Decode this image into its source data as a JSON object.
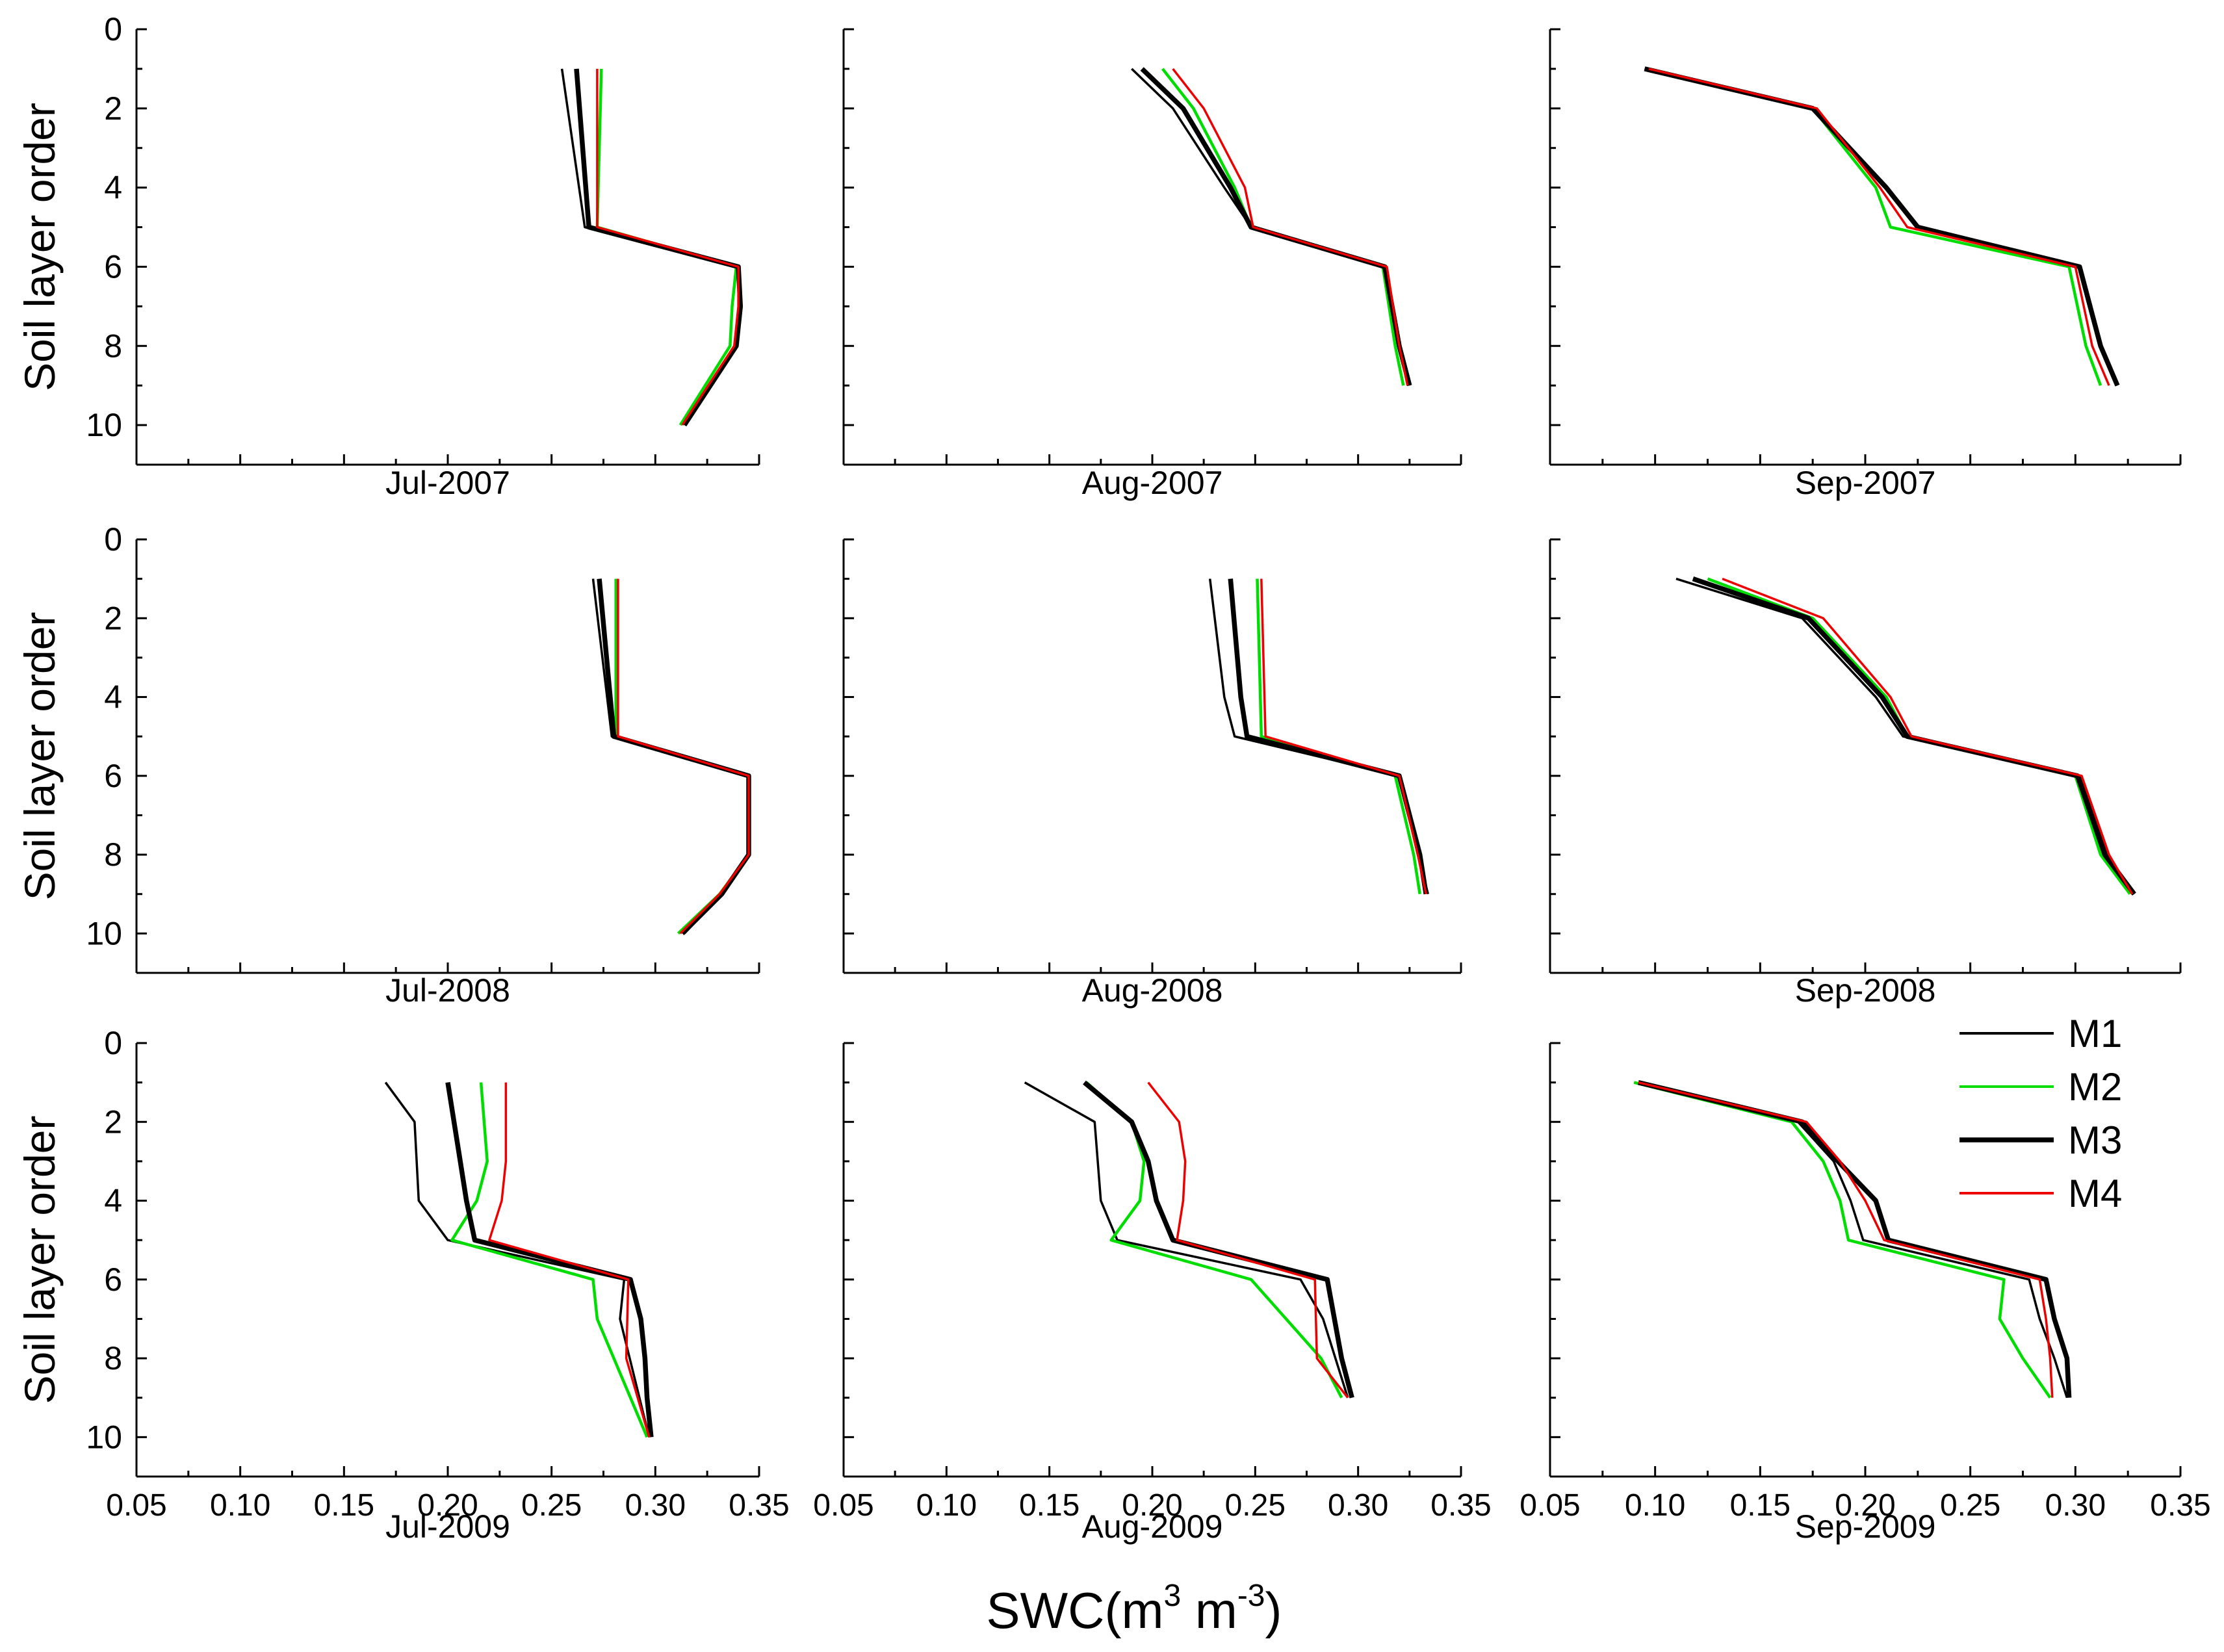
{
  "figure": {
    "y_axis_label": "Soil layer order",
    "x_axis_label_main": "SWC(m",
    "x_axis_label_sup1": "3",
    "x_axis_label_mid": " m",
    "x_axis_label_sup2": "-3",
    "x_axis_label_end": ")"
  },
  "legend": {
    "items": [
      {
        "label": "M1",
        "color": "#000000",
        "width": "thin"
      },
      {
        "label": "M2",
        "color": "#00dd00",
        "width": "thin"
      },
      {
        "label": "M3",
        "color": "#000000",
        "width": "thick"
      },
      {
        "label": "M4",
        "color": "#ee0000",
        "width": "thin"
      }
    ]
  },
  "chart_data": {
    "type": "line",
    "orientation": "depth-profile (x = SWC, y = soil layer order, y inverted)",
    "xlim": [
      0.05,
      0.35
    ],
    "ylim": [
      0,
      11
    ],
    "x_ticks": [
      "0.05",
      "0.10",
      "0.15",
      "0.20",
      "0.25",
      "0.30",
      "0.35"
    ],
    "y_ticks": [
      "0",
      "2",
      "4",
      "6",
      "8",
      "10"
    ],
    "series_colors": {
      "M1": "#000000",
      "M2": "#00dd00",
      "M3": "#000000",
      "M4": "#ee0000"
    },
    "panels": [
      {
        "title": "Jul-2007",
        "series": {
          "M1": {
            "layers": [
              1,
              5,
              6,
              7,
              8,
              10
            ],
            "values": [
              0.255,
              0.266,
              0.34,
              0.341,
              0.339,
              0.314
            ]
          },
          "M2": {
            "layers": [
              1,
              5,
              6,
              7,
              8,
              10
            ],
            "values": [
              0.274,
              0.272,
              0.339,
              0.337,
              0.336,
              0.312
            ]
          },
          "M3": {
            "layers": [
              1,
              5,
              6,
              7,
              8,
              10
            ],
            "values": [
              0.262,
              0.268,
              0.34,
              0.341,
              0.339,
              0.314
            ]
          },
          "M4": {
            "layers": [
              1,
              5,
              6,
              7,
              8,
              10
            ],
            "values": [
              0.272,
              0.272,
              0.34,
              0.34,
              0.338,
              0.313
            ]
          }
        }
      },
      {
        "title": "Aug-2007",
        "series": {
          "M1": {
            "layers": [
              1,
              2,
              4,
              5,
              6,
              8,
              9
            ],
            "values": [
              0.19,
              0.21,
              0.235,
              0.248,
              0.313,
              0.32,
              0.325
            ]
          },
          "M2": {
            "layers": [
              1,
              2,
              4,
              5,
              6,
              8,
              9
            ],
            "values": [
              0.205,
              0.22,
              0.24,
              0.248,
              0.312,
              0.318,
              0.322
            ]
          },
          "M3": {
            "layers": [
              1,
              2,
              4,
              5,
              6,
              8,
              9
            ],
            "values": [
              0.195,
              0.215,
              0.238,
              0.248,
              0.313,
              0.32,
              0.325
            ]
          },
          "M4": {
            "layers": [
              1,
              2,
              4,
              5,
              6,
              8,
              9
            ],
            "values": [
              0.21,
              0.225,
              0.245,
              0.249,
              0.314,
              0.32,
              0.324
            ]
          }
        }
      },
      {
        "title": "Sep-2007",
        "series": {
          "M1": {
            "layers": [
              1,
              2,
              4,
              5,
              6,
              8,
              9
            ],
            "values": [
              0.095,
              0.175,
              0.21,
              0.225,
              0.302,
              0.312,
              0.32
            ]
          },
          "M2": {
            "layers": [
              1,
              2,
              4,
              5,
              6,
              8,
              9
            ],
            "values": [
              0.097,
              0.175,
              0.205,
              0.212,
              0.297,
              0.305,
              0.312
            ]
          },
          "M3": {
            "layers": [
              1,
              2,
              4,
              5,
              6,
              8,
              9
            ],
            "values": [
              0.095,
              0.175,
              0.21,
              0.225,
              0.302,
              0.312,
              0.32
            ]
          },
          "M4": {
            "layers": [
              1,
              2,
              4,
              5,
              6,
              8,
              9
            ],
            "values": [
              0.097,
              0.177,
              0.207,
              0.22,
              0.3,
              0.308,
              0.316
            ]
          }
        }
      },
      {
        "title": "Jul-2008",
        "series": {
          "M1": {
            "layers": [
              1,
              5,
              6,
              8,
              9,
              10
            ],
            "values": [
              0.27,
              0.279,
              0.345,
              0.345,
              0.332,
              0.314
            ]
          },
          "M2": {
            "layers": [
              1,
              5,
              6,
              8,
              9,
              10
            ],
            "values": [
              0.281,
              0.281,
              0.345,
              0.345,
              0.331,
              0.311
            ]
          },
          "M3": {
            "layers": [
              1,
              5,
              6,
              8,
              9,
              10
            ],
            "values": [
              0.273,
              0.28,
              0.345,
              0.345,
              0.332,
              0.313
            ]
          },
          "M4": {
            "layers": [
              1,
              5,
              6,
              8,
              9,
              10
            ],
            "values": [
              0.282,
              0.282,
              0.345,
              0.345,
              0.331,
              0.312
            ]
          }
        }
      },
      {
        "title": "Aug-2008",
        "series": {
          "M1": {
            "layers": [
              1,
              4,
              5,
              6,
              8,
              9
            ],
            "values": [
              0.228,
              0.235,
              0.24,
              0.32,
              0.329,
              0.334
            ]
          },
          "M2": {
            "layers": [
              1,
              5,
              6,
              8,
              9
            ],
            "values": [
              0.251,
              0.253,
              0.318,
              0.327,
              0.33
            ]
          },
          "M3": {
            "layers": [
              1,
              4,
              5,
              6,
              8,
              9
            ],
            "values": [
              0.238,
              0.243,
              0.246,
              0.32,
              0.33,
              0.333
            ]
          },
          "M4": {
            "layers": [
              1,
              5,
              6,
              8,
              9
            ],
            "values": [
              0.253,
              0.255,
              0.32,
              0.329,
              0.333
            ]
          }
        }
      },
      {
        "title": "Sep-2008",
        "series": {
          "M1": {
            "layers": [
              1,
              2,
              4,
              5,
              6,
              8,
              9
            ],
            "values": [
              0.11,
              0.17,
              0.205,
              0.218,
              0.302,
              0.315,
              0.328
            ]
          },
          "M2": {
            "layers": [
              1,
              2,
              4,
              5,
              6,
              8,
              9
            ],
            "values": [
              0.125,
              0.175,
              0.21,
              0.22,
              0.3,
              0.312,
              0.326
            ]
          },
          "M3": {
            "layers": [
              1,
              2,
              4,
              5,
              6,
              8,
              9
            ],
            "values": [
              0.118,
              0.173,
              0.208,
              0.22,
              0.301,
              0.314,
              0.328
            ]
          },
          "M4": {
            "layers": [
              1,
              2,
              4,
              5,
              6,
              8,
              9
            ],
            "values": [
              0.132,
              0.18,
              0.212,
              0.222,
              0.303,
              0.316,
              0.327
            ]
          }
        }
      },
      {
        "title": "Jul-2009",
        "series": {
          "M1": {
            "layers": [
              1,
              2,
              4,
              5,
              6,
              7,
              10
            ],
            "values": [
              0.17,
              0.184,
              0.186,
              0.2,
              0.285,
              0.283,
              0.297
            ]
          },
          "M2": {
            "layers": [
              1,
              3,
              4,
              5,
              6,
              7,
              8,
              10
            ],
            "values": [
              0.216,
              0.219,
              0.214,
              0.202,
              0.27,
              0.272,
              0.28,
              0.296
            ]
          },
          "M3": {
            "layers": [
              1,
              2,
              3,
              4,
              5,
              6,
              7,
              8,
              9,
              10
            ],
            "values": [
              0.2,
              0.203,
              0.206,
              0.209,
              0.213,
              0.288,
              0.293,
              0.295,
              0.296,
              0.298
            ]
          },
          "M4": {
            "layers": [
              1,
              3,
              4,
              5,
              6,
              8,
              10
            ],
            "values": [
              0.228,
              0.228,
              0.226,
              0.22,
              0.287,
              0.286,
              0.297
            ]
          }
        }
      },
      {
        "title": "Aug-2009",
        "series": {
          "M1": {
            "layers": [
              1,
              2,
              4,
              5,
              6,
              7,
              9
            ],
            "values": [
              0.138,
              0.172,
              0.175,
              0.183,
              0.272,
              0.283,
              0.295
            ]
          },
          "M2": {
            "layers": [
              1,
              2,
              3,
              4,
              5,
              6,
              8,
              9
            ],
            "values": [
              0.168,
              0.19,
              0.196,
              0.194,
              0.18,
              0.248,
              0.282,
              0.292
            ]
          },
          "M3": {
            "layers": [
              1,
              2,
              3,
              4,
              5,
              6,
              8,
              9
            ],
            "values": [
              0.167,
              0.19,
              0.198,
              0.202,
              0.21,
              0.285,
              0.292,
              0.297
            ]
          },
          "M4": {
            "layers": [
              1,
              2,
              3,
              4,
              5,
              6,
              8,
              9
            ],
            "values": [
              0.198,
              0.213,
              0.216,
              0.215,
              0.212,
              0.279,
              0.28,
              0.295
            ]
          }
        }
      },
      {
        "title": "Sep-2009",
        "series": {
          "M1": {
            "layers": [
              1,
              2,
              3,
              4,
              5,
              6,
              7,
              8,
              9
            ],
            "values": [
              0.09,
              0.168,
              0.185,
              0.193,
              0.199,
              0.278,
              0.283,
              0.29,
              0.296
            ]
          },
          "M2": {
            "layers": [
              1,
              2,
              3,
              4,
              5,
              6,
              7,
              8,
              9
            ],
            "values": [
              0.09,
              0.165,
              0.18,
              0.188,
              0.192,
              0.266,
              0.264,
              0.275,
              0.288
            ]
          },
          "M3": {
            "layers": [
              1,
              2,
              3,
              4,
              5,
              6,
              7,
              8,
              9
            ],
            "values": [
              0.092,
              0.17,
              0.187,
              0.205,
              0.211,
              0.286,
              0.29,
              0.296,
              0.297
            ]
          },
          "M4": {
            "layers": [
              1,
              2,
              3,
              4,
              5,
              6,
              7,
              8,
              9
            ],
            "values": [
              0.092,
              0.172,
              0.188,
              0.2,
              0.209,
              0.283,
              0.286,
              0.288,
              0.289
            ]
          }
        }
      }
    ]
  }
}
